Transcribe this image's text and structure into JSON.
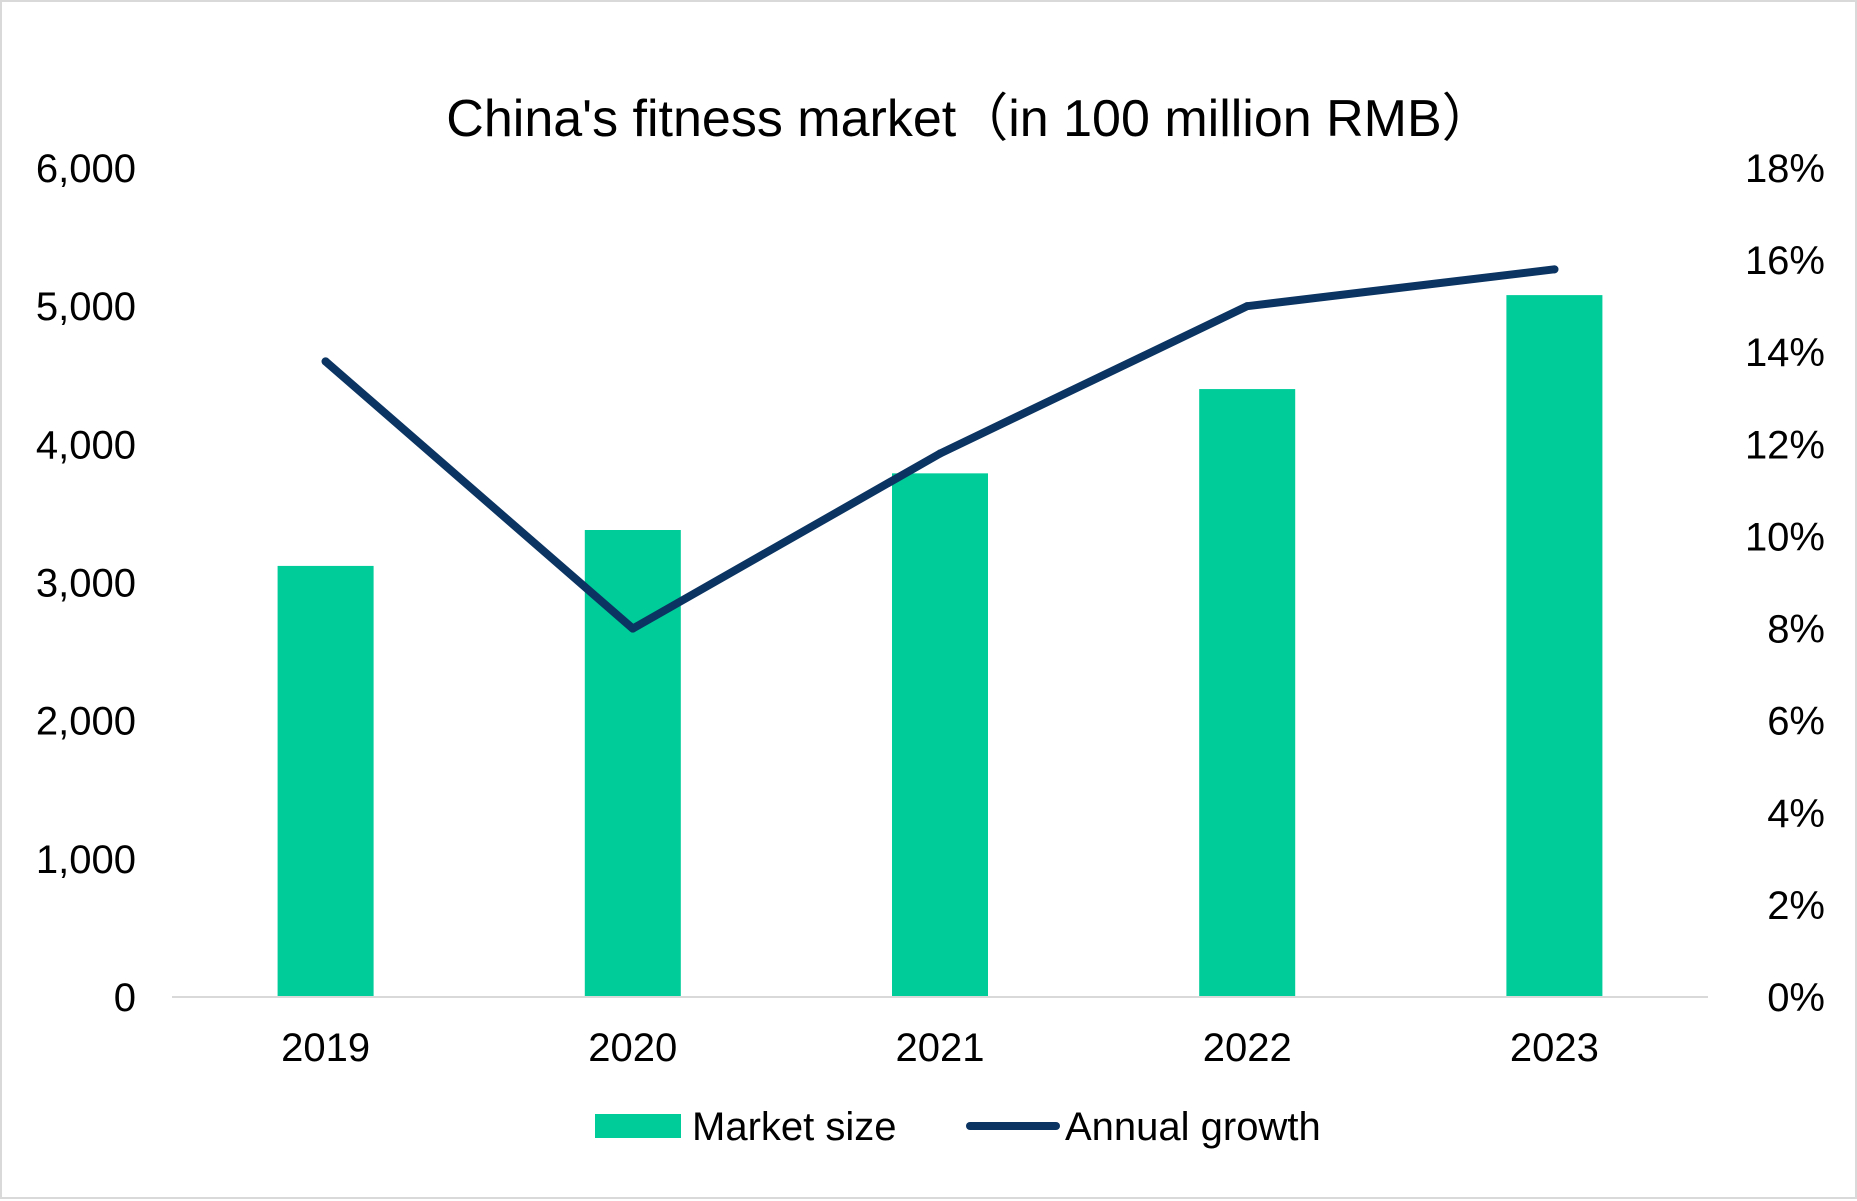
{
  "chart_data": {
    "type": "bar",
    "title": "China's fitness market（in 100 million RMB）",
    "categories": [
      "2019",
      "2020",
      "2021",
      "2022",
      "2023"
    ],
    "series": [
      {
        "name": "Market size",
        "kind": "bar",
        "axis": "left",
        "values": [
          3120,
          3380,
          3790,
          4400,
          5080
        ]
      },
      {
        "name": "Annual growth",
        "kind": "line",
        "axis": "right",
        "values": [
          13.8,
          8.0,
          11.8,
          15.0,
          15.8
        ]
      }
    ],
    "y_left": {
      "min": 0,
      "max": 6000,
      "ticks": [
        0,
        1000,
        2000,
        3000,
        4000,
        5000,
        6000
      ],
      "tick_labels": [
        "0",
        "1,000",
        "2,000",
        "3,000",
        "4,000",
        "5,000",
        "6,000"
      ]
    },
    "y_right": {
      "min": 0,
      "max": 18,
      "ticks": [
        0,
        2,
        4,
        6,
        8,
        10,
        12,
        14,
        16,
        18
      ],
      "tick_labels": [
        "0%",
        "2%",
        "4%",
        "6%",
        "8%",
        "10%",
        "12%",
        "14%",
        "16%",
        "18%"
      ]
    },
    "xlabel": "",
    "ylabel": "",
    "grid": false,
    "legend_position": "bottom",
    "colors": {
      "bar": "#00CC99",
      "line": "#0B3462",
      "axis": "#d9d9d9",
      "border": "#d9d9d9"
    }
  }
}
